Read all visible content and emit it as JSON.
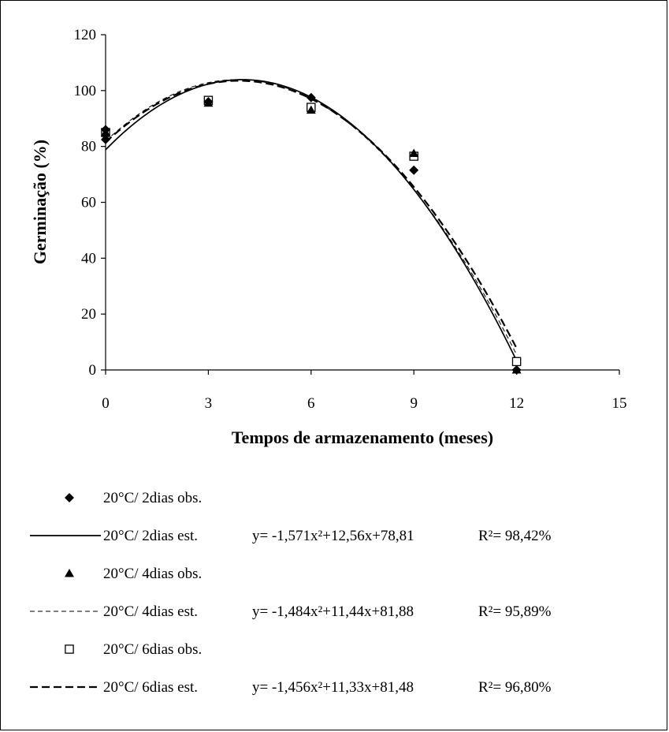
{
  "colors": {
    "ink": "#000000",
    "background": "#ffffff",
    "hollow_fill": "#ffffff"
  },
  "chart_data": {
    "type": "scatter",
    "title": "",
    "xlabel": "Tempos de armazenamento (meses)",
    "ylabel": "Germinação (%)",
    "xlim": [
      0,
      15
    ],
    "ylim": [
      0,
      120
    ],
    "xticks": [
      "0",
      "3",
      "6",
      "9",
      "12",
      "15"
    ],
    "yticks": [
      "0",
      "20",
      "40",
      "60",
      "80",
      "100",
      "120"
    ],
    "grid": false,
    "legend_position": "bottom",
    "series": [
      {
        "key": "d2",
        "observed": {
          "name": "20°C/ 2dias obs.",
          "marker": "diamond",
          "points": [
            [
              0,
              86
            ],
            [
              0,
              82.5
            ],
            [
              3,
              96
            ],
            [
              6,
              97.5
            ],
            [
              9,
              71.5
            ],
            [
              12,
              0
            ]
          ]
        },
        "estimated": {
          "name": "20°C/ 2dias est.",
          "line_style": "solid",
          "equation": "y= -1,571x²+12,56x+78,81",
          "r2": "R²= 98,42%",
          "coefficients": {
            "a": -1.571,
            "b": 12.56,
            "c": 78.81
          }
        }
      },
      {
        "key": "d4",
        "observed": {
          "name": "20°C/ 4dias obs.",
          "marker": "triangle",
          "points": [
            [
              0,
              85
            ],
            [
              3,
              95.5
            ],
            [
              6,
              93
            ],
            [
              9,
              77.5
            ],
            [
              12,
              0
            ]
          ]
        },
        "estimated": {
          "name": "20°C/ 4dias est.",
          "line_style": "thin-dashed",
          "equation": "y= -1,484x²+11,44x+81,88",
          "r2": "R²= 95,89%",
          "coefficients": {
            "a": -1.484,
            "b": 11.44,
            "c": 81.88
          }
        }
      },
      {
        "key": "d6",
        "observed": {
          "name": "20°C/ 6dias obs.",
          "marker": "open-square",
          "points": [
            [
              0,
              85
            ],
            [
              3,
              96.5
            ],
            [
              6,
              94
            ],
            [
              9,
              76.5
            ],
            [
              12,
              3
            ]
          ]
        },
        "estimated": {
          "name": "20°C/ 6dias est.",
          "line_style": "thick-dashed",
          "equation": "y= -1,456x²+11,33x+81,48",
          "r2": "R²= 96,80%",
          "coefficients": {
            "a": -1.456,
            "b": 11.33,
            "c": 81.48
          }
        }
      }
    ]
  }
}
